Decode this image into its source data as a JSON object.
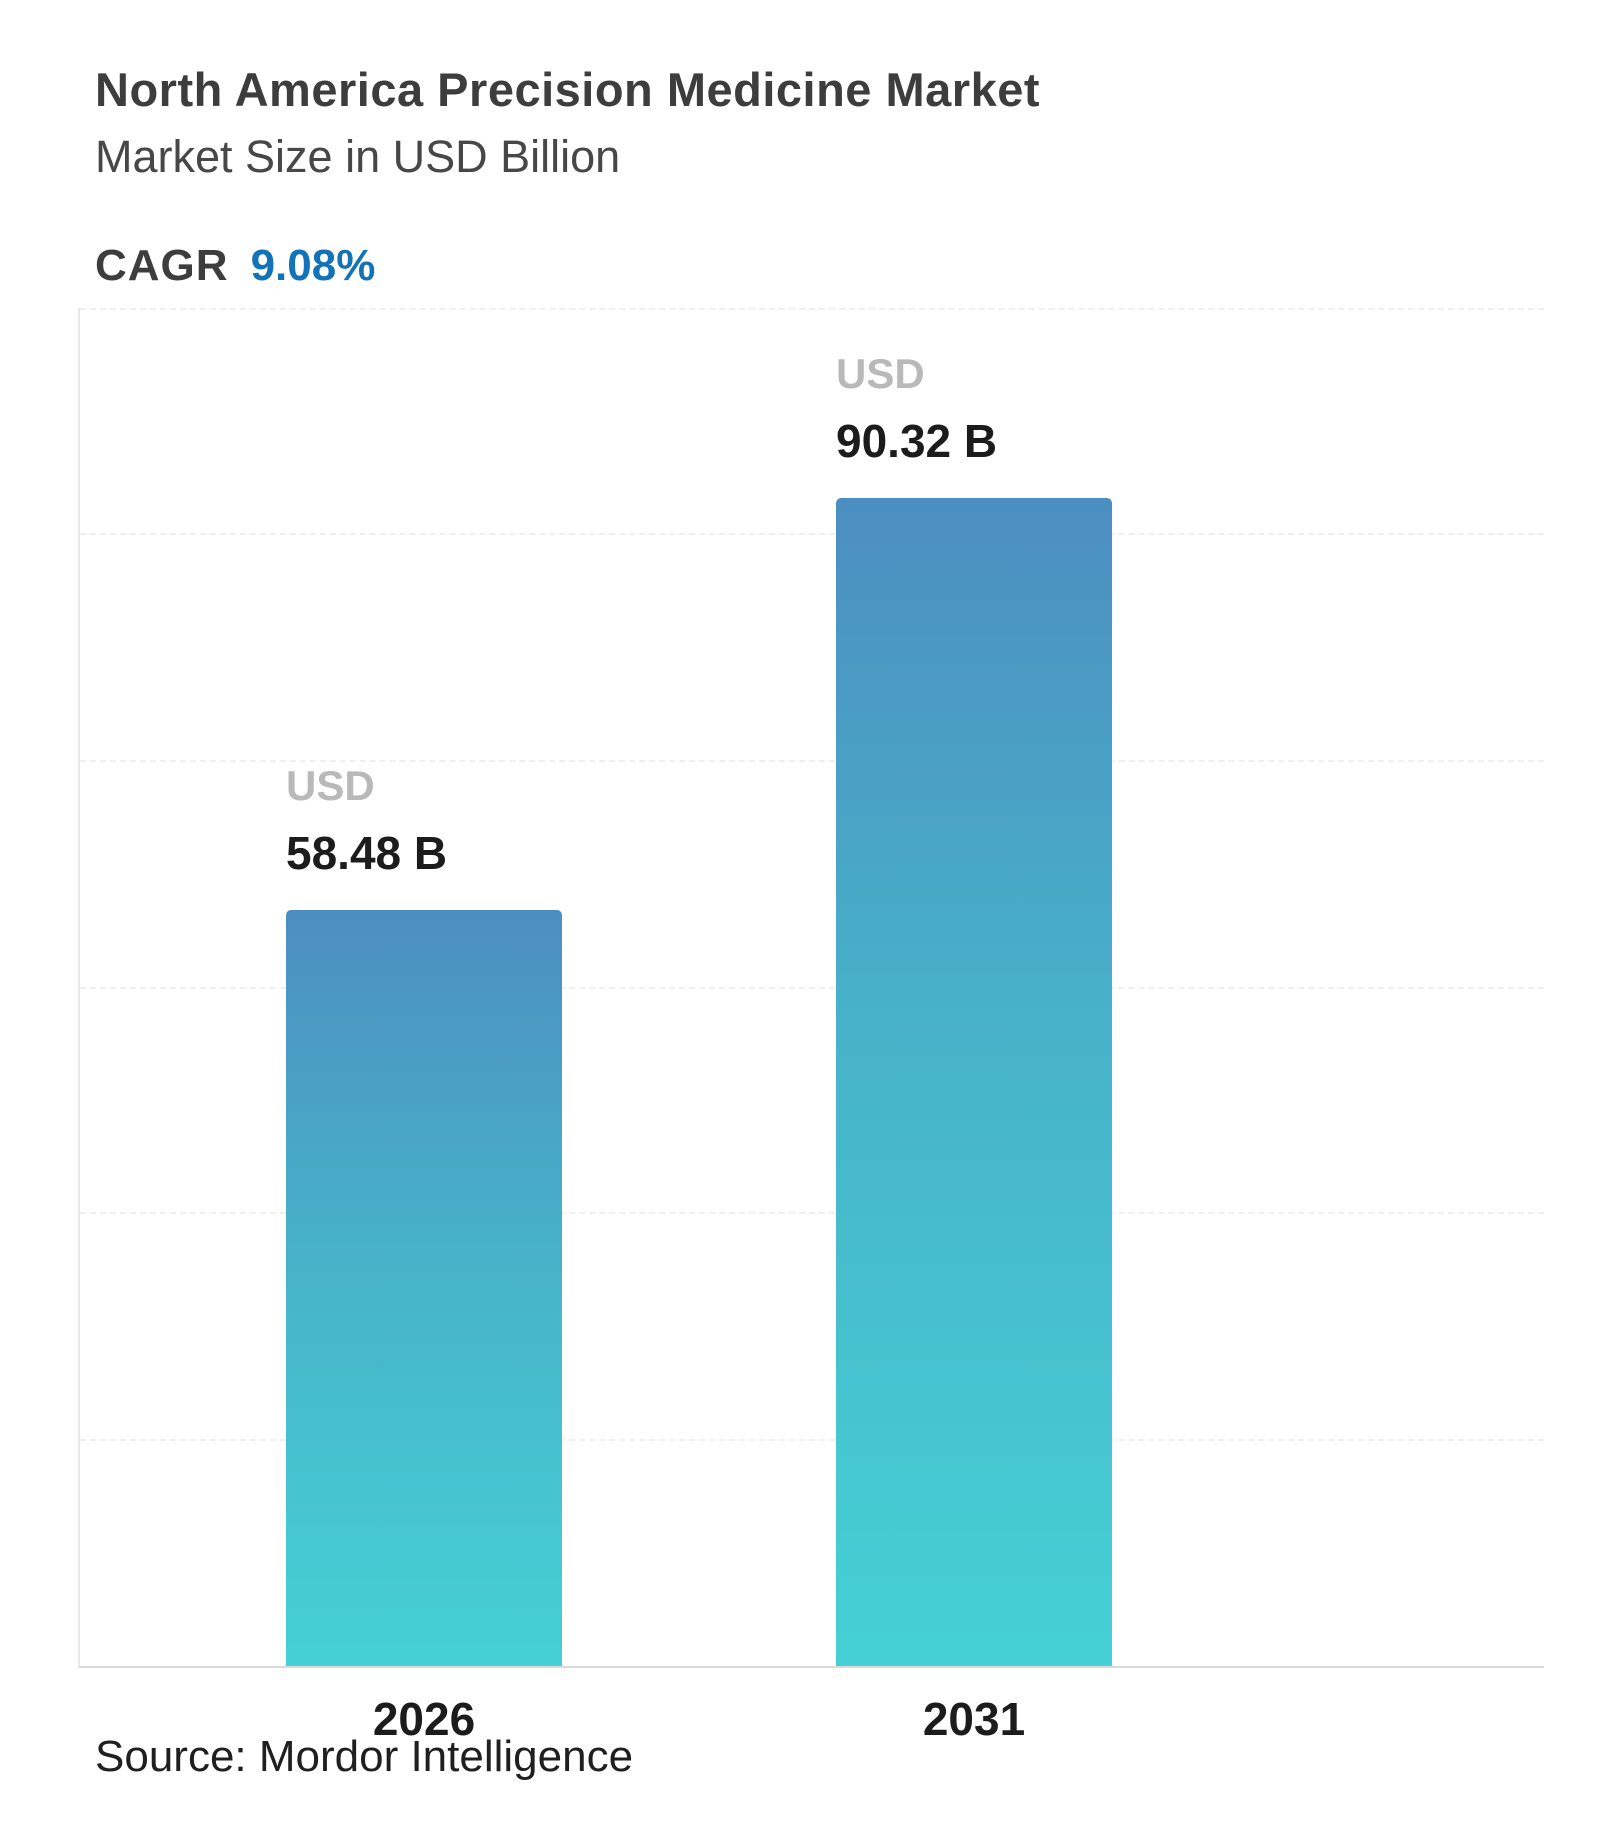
{
  "header": {
    "title": "North America Precision Medicine Market",
    "subtitle": "Market Size in USD Billion",
    "cagr_label": "CAGR",
    "cagr_value": "9.08%"
  },
  "footer": {
    "source": "Source: Mordor Intelligence"
  },
  "colors": {
    "accent_blue": "#1273b8",
    "bar_gradient_top": "#4c8ec1",
    "bar_gradient_bottom": "#45d1d5",
    "title_text": "#3d3d3d",
    "muted_label": "#b9b9b9"
  },
  "chart_data": {
    "type": "bar",
    "categories": [
      "2026",
      "2031"
    ],
    "values": [
      58.48,
      90.32
    ],
    "unit": "USD",
    "value_labels": [
      "58.48 B",
      "90.32 B"
    ],
    "title": "North America Precision Medicine Market",
    "xlabel": "",
    "ylabel": "Market Size in USD Billion",
    "ylim": [
      0,
      105
    ],
    "grid": "horizontal-dashed",
    "legend": "none",
    "annotations": [
      "CAGR 9.08%",
      "Source: Mordor Intelligence"
    ]
  }
}
